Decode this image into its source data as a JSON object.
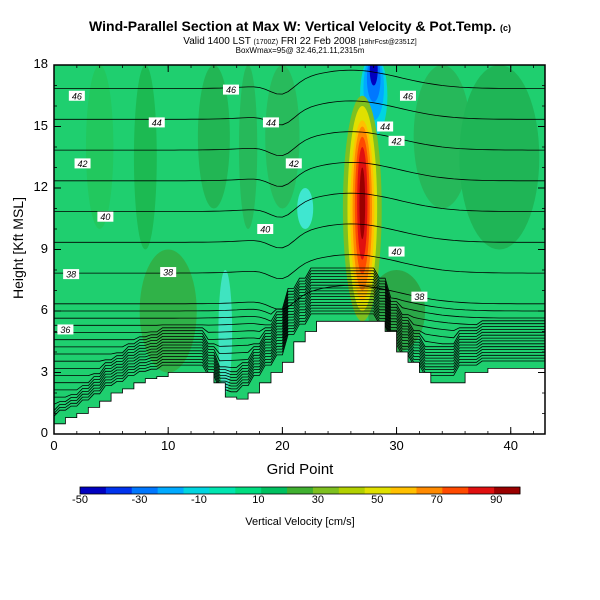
{
  "chart_data": {
    "type": "heatmap",
    "title": "Wind-Parallel Section at Max W: Vertical Velocity & Pot.Temp.",
    "title_mark": "(c)",
    "subtitle_main": "Valid 1400 LST",
    "subtitle_utc": "(1700Z)",
    "subtitle_date": "FRI 22 Feb 2008",
    "subtitle_run": "[18hrFcst@2351Z]",
    "subtitle2": "BoxWmax=95@ 32.46,21.11,2315m",
    "xlabel": "Grid Point",
    "ylabel": "Height [Kft MSL]",
    "xlim": [
      0,
      43
    ],
    "ylim": [
      0,
      18
    ],
    "xticks": [
      "0",
      "10",
      "20",
      "30",
      "40"
    ],
    "yticks": [
      "0",
      "3",
      "6",
      "9",
      "12",
      "15",
      "18"
    ],
    "colorbar": {
      "label": "Vertical Velocity [cm/s]",
      "ticks": [
        "-50",
        "-30",
        "-10",
        "10",
        "30",
        "50",
        "70",
        "90"
      ],
      "colors": [
        "#0000c0",
        "#0033ee",
        "#0077ff",
        "#00aaff",
        "#00d5e0",
        "#00e5b0",
        "#00dd80",
        "#00c060",
        "#40b030",
        "#7ec020",
        "#b2d000",
        "#e0e000",
        "#ffc000",
        "#ff8a00",
        "#ff4a00",
        "#e01010",
        "#9a0000"
      ]
    },
    "theta_contour_labels": [
      "36",
      "38",
      "40",
      "42",
      "44",
      "46"
    ],
    "theta_contour_levels": [
      36,
      38,
      40,
      42,
      44,
      46
    ],
    "terrain_height_kft": [
      0.5,
      0.8,
      1.0,
      1.3,
      1.6,
      2.0,
      2.2,
      2.5,
      2.7,
      2.8,
      3.0,
      3.0,
      3.0,
      3.0,
      2.5,
      1.8,
      1.7,
      2.0,
      2.5,
      3.0,
      3.5,
      4.5,
      5.0,
      5.5,
      5.5,
      5.5,
      5.5,
      5.5,
      5.5,
      5.0,
      4.0,
      3.5,
      3.0,
      2.5,
      2.5,
      2.5,
      3.0,
      3.0,
      3.2,
      3.2,
      3.2,
      3.2,
      3.2,
      3.2
    ],
    "updraft_max_cm_s": 95,
    "updraft_grid_point": 27,
    "downdraft_min_cm_s": -50,
    "downdraft_grid_point": 28
  }
}
